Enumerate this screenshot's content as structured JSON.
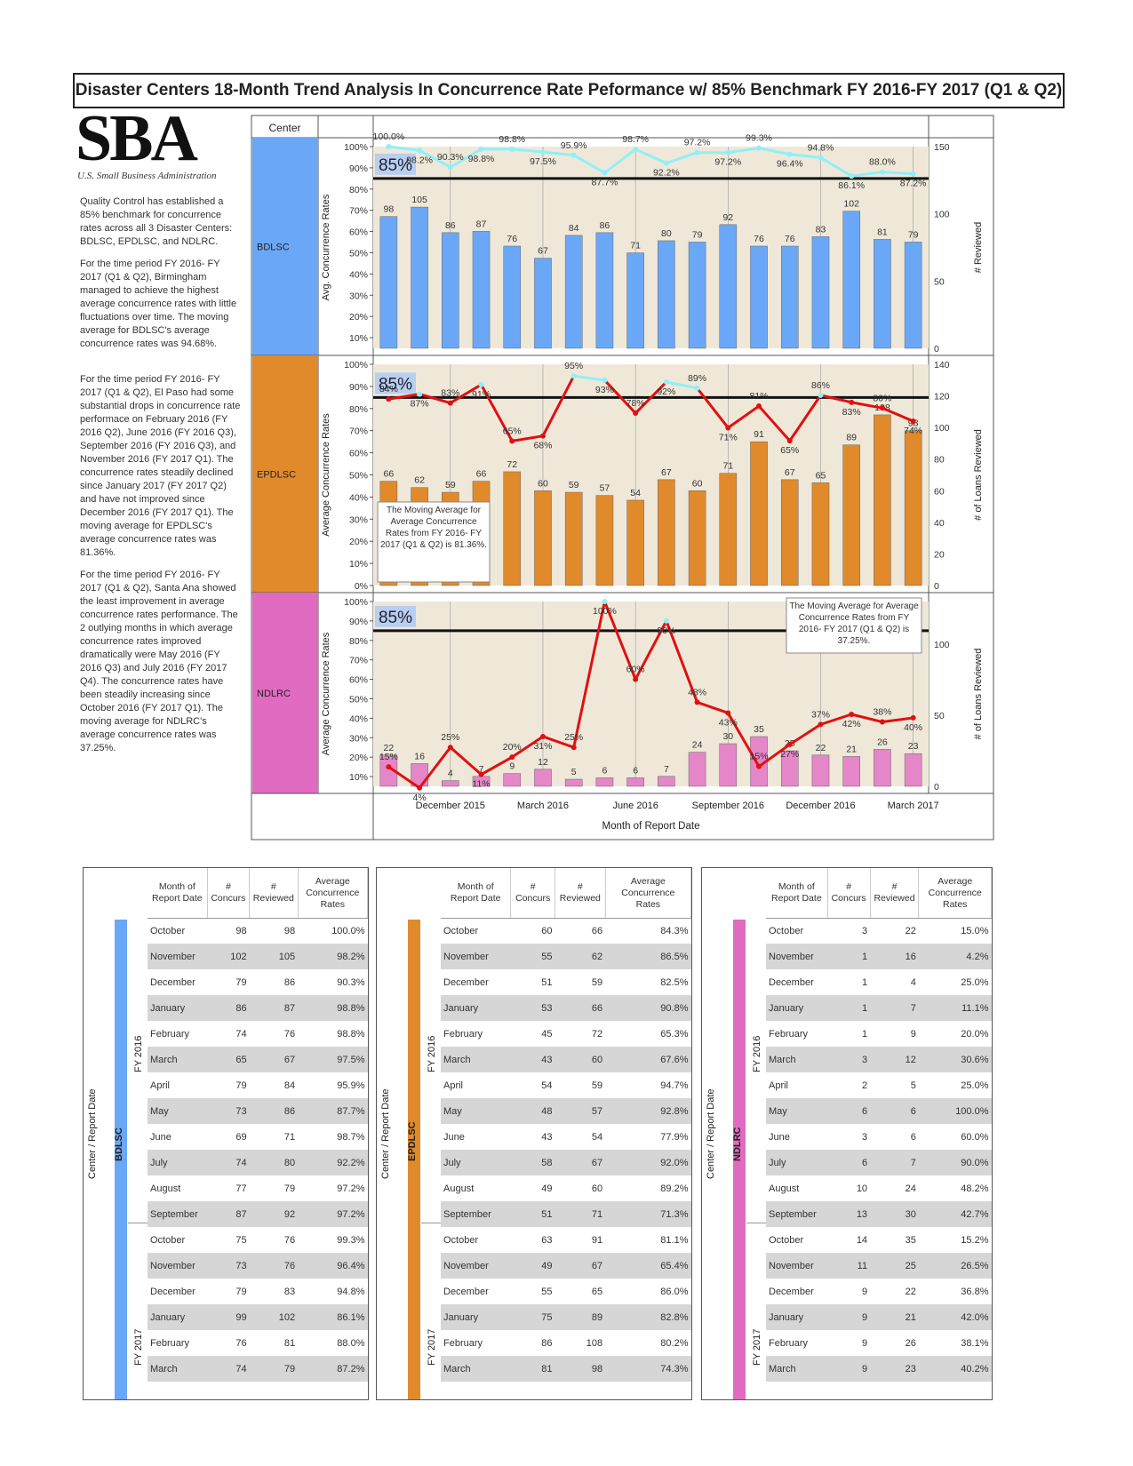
{
  "title": "Disaster Centers 18-Month Trend Analysis In Concurrence Rate Peformance w/ 85% Benchmark FY 2016-FY 2017 (Q1 & Q2)",
  "logo": {
    "text": "SBA",
    "subtitle": "U.S. Small Business Administration"
  },
  "narrative": {
    "p1": "Quality Control has established a 85% benchmark for concurrence rates across all 3 Disaster Centers: BDLSC, EPDLSC, and NDLRC.",
    "p2": "For the time period FY 2016- FY 2017 (Q1 & Q2), Birmingham managed to achieve the highest average concurrence rates with little fluctuations over time. The moving average for BDLSC's average concurrence rates was 94.68%.",
    "p3": "For the time period FY 2016- FY 2017 (Q1 & Q2), El Paso had some substantial drops in concurrence rate performace on February 2016 (FY 2016 Q2), June 2016 (FY 2016 Q3), September 2016 (FY 2016 Q3), and November 2016 (FY 2017 Q1). The concurrence rates steadily declined since January 2017 (FY 2017 Q2) and have not improved since December 2016 (FY 2017 Q1). The moving average for EPDLSC's average concurrence rates was 81.36%.",
    "p4": "For the time period FY 2016- FY 2017 (Q1 & Q2), Santa Ana showed the least improvement in average concurrence rates performance. The 2 outlying months in which average concurrence rates improved dramatically were May 2016 (FY 2016 Q3) and July 2016 (FY 2017 Q4). The concurrence rates have been steadily increasing since October 2016 (FY 2017 Q1). The moving average for NDLRC's average concurrence rates was 37.25%."
  },
  "colors": {
    "bdlsc": "#6aa8f7",
    "epdlsc": "#e08a2c",
    "ndlrc": "#e06bc0",
    "bar_bdlsc": "#6aa8f7",
    "bar_epdlsc": "#e08a2c",
    "bar_ndlrc": "#e586c8",
    "line_light": "#8ff0f7",
    "line_red": "#e01010",
    "bg": "#efe8d9"
  },
  "chart_data": {
    "type": "bar",
    "header": {
      "center": "Center"
    },
    "x_label": "Month of Report Date",
    "x_ticks": [
      "December 2015",
      "March 2016",
      "June 2016",
      "September 2016",
      "December 2016",
      "March 2017"
    ],
    "benchmark": 85,
    "benchmark_label": "85%",
    "panels": [
      {
        "center": "BDLSC",
        "left_label": "Avg. Concurrence Rates",
        "right_label": "# Reviewed",
        "y_ticks": [
          "10%",
          "20%",
          "30%",
          "40%",
          "50%",
          "60%",
          "70%",
          "80%",
          "90%",
          "100%"
        ],
        "right_ticks": [
          "0",
          "50",
          "100",
          "150"
        ],
        "right_max": 150,
        "reviewed": [
          98,
          105,
          86,
          87,
          76,
          67,
          84,
          86,
          71,
          80,
          79,
          92,
          76,
          76,
          83,
          102,
          81,
          79
        ],
        "rates": [
          100.0,
          98.2,
          90.3,
          98.8,
          98.8,
          97.5,
          95.9,
          87.7,
          98.7,
          92.2,
          97.2,
          97.2,
          99.3,
          96.4,
          94.8,
          86.1,
          88.0,
          87.2
        ],
        "rate_labels": [
          "100.0%",
          "98.2%",
          "90.3%",
          "98.8%",
          "98.8%",
          "97.5%",
          "95.9%",
          "87.7%",
          "98.7%",
          "92.2%",
          "97.2%",
          "97.2%",
          "99.3%",
          "96.4%",
          "94.8%",
          "86.1%",
          "88.0%",
          "87.2%"
        ],
        "note": ""
      },
      {
        "center": "EPDLSC",
        "left_label": "Average Concurrence Rates",
        "right_label": "# of Loans Reviewed",
        "y_ticks": [
          "0%",
          "10%",
          "20%",
          "30%",
          "40%",
          "50%",
          "60%",
          "70%",
          "80%",
          "90%",
          "100%"
        ],
        "right_ticks": [
          "0",
          "20",
          "40",
          "60",
          "80",
          "100",
          "120",
          "140"
        ],
        "right_max": 140,
        "reviewed": [
          66,
          62,
          59,
          66,
          72,
          60,
          59,
          57,
          54,
          67,
          60,
          71,
          91,
          67,
          65,
          89,
          108,
          98
        ],
        "rates": [
          84.3,
          86.5,
          82.5,
          90.8,
          65.3,
          67.6,
          94.7,
          92.8,
          77.9,
          92.0,
          89.2,
          71.3,
          81.1,
          65.4,
          86.0,
          82.8,
          80.2,
          74.3
        ],
        "rate_labels": [
          "84%",
          "87%",
          "83%",
          "91%",
          "65%",
          "68%",
          "95%",
          "93%",
          "78%",
          "92%",
          "89%",
          "71%",
          "81%",
          "65%",
          "86%",
          "83%",
          "80%",
          "74%"
        ],
        "note": "The Moving Average for Average Concurrence Rates from FY 2016- FY 2017 (Q1 & Q2) is 81.36%."
      },
      {
        "center": "NDLRC",
        "left_label": "Average Concurrence Rates",
        "right_label": "# of Loans Reviewed",
        "y_ticks": [
          "10%",
          "20%",
          "30%",
          "40%",
          "50%",
          "60%",
          "70%",
          "80%",
          "90%",
          "100%"
        ],
        "right_ticks": [
          "0",
          "50",
          "100"
        ],
        "right_max": 130,
        "reviewed": [
          22,
          16,
          4,
          7,
          9,
          12,
          5,
          6,
          6,
          7,
          24,
          30,
          35,
          25,
          22,
          21,
          26,
          23
        ],
        "rates": [
          15.0,
          4.2,
          25.0,
          11.1,
          20.0,
          30.6,
          25.0,
          100.0,
          60.0,
          90.0,
          48.2,
          42.7,
          15.2,
          26.5,
          36.8,
          42.0,
          38.1,
          40.2
        ],
        "rate_labels": [
          "15%",
          "4%",
          "25%",
          "11%",
          "20%",
          "31%",
          "25%",
          "100%",
          "60%",
          "90%",
          "48%",
          "43%",
          "15%",
          "27%",
          "37%",
          "42%",
          "38%",
          "40%"
        ],
        "note": "The Moving Average for Average Concurrence Rates from FY 2016- FY 2017 (Q1 & Q2) is 37.25%."
      }
    ]
  },
  "tables": {
    "headers": {
      "month": "Month of Report Date",
      "concurs": "# Concurs",
      "reviewed": "# Reviewed",
      "avg": "Average Concurrence Rates"
    },
    "side_label": "Center / Report Date",
    "fy2016": "FY 2016",
    "fy2017": "FY 2017",
    "centers": [
      {
        "name": "BDLSC",
        "rows": [
          [
            "October",
            98,
            98,
            "100.0%"
          ],
          [
            "November",
            102,
            105,
            "98.2%"
          ],
          [
            "December",
            79,
            86,
            "90.3%"
          ],
          [
            "January",
            86,
            87,
            "98.8%"
          ],
          [
            "February",
            74,
            76,
            "98.8%"
          ],
          [
            "March",
            65,
            67,
            "97.5%"
          ],
          [
            "April",
            79,
            84,
            "95.9%"
          ],
          [
            "May",
            73,
            86,
            "87.7%"
          ],
          [
            "June",
            69,
            71,
            "98.7%"
          ],
          [
            "July",
            74,
            80,
            "92.2%"
          ],
          [
            "August",
            77,
            79,
            "97.2%"
          ],
          [
            "September",
            87,
            92,
            "97.2%"
          ],
          [
            "October",
            75,
            76,
            "99.3%"
          ],
          [
            "November",
            73,
            76,
            "96.4%"
          ],
          [
            "December",
            79,
            83,
            "94.8%"
          ],
          [
            "January",
            99,
            102,
            "86.1%"
          ],
          [
            "February",
            76,
            81,
            "88.0%"
          ],
          [
            "March",
            74,
            79,
            "87.2%"
          ]
        ]
      },
      {
        "name": "EPDLSC",
        "rows": [
          [
            "October",
            60,
            66,
            "84.3%"
          ],
          [
            "November",
            55,
            62,
            "86.5%"
          ],
          [
            "December",
            51,
            59,
            "82.5%"
          ],
          [
            "January",
            53,
            66,
            "90.8%"
          ],
          [
            "February",
            45,
            72,
            "65.3%"
          ],
          [
            "March",
            43,
            60,
            "67.6%"
          ],
          [
            "April",
            54,
            59,
            "94.7%"
          ],
          [
            "May",
            48,
            57,
            "92.8%"
          ],
          [
            "June",
            43,
            54,
            "77.9%"
          ],
          [
            "July",
            58,
            67,
            "92.0%"
          ],
          [
            "August",
            49,
            60,
            "89.2%"
          ],
          [
            "September",
            51,
            71,
            "71.3%"
          ],
          [
            "October",
            63,
            91,
            "81.1%"
          ],
          [
            "November",
            49,
            67,
            "65.4%"
          ],
          [
            "December",
            55,
            65,
            "86.0%"
          ],
          [
            "January",
            75,
            89,
            "82.8%"
          ],
          [
            "February",
            86,
            108,
            "80.2%"
          ],
          [
            "March",
            81,
            98,
            "74.3%"
          ]
        ]
      },
      {
        "name": "NDLRC",
        "rows": [
          [
            "October",
            3,
            22,
            "15.0%"
          ],
          [
            "November",
            1,
            16,
            "4.2%"
          ],
          [
            "December",
            1,
            4,
            "25.0%"
          ],
          [
            "January",
            1,
            7,
            "11.1%"
          ],
          [
            "February",
            1,
            9,
            "20.0%"
          ],
          [
            "March",
            3,
            12,
            "30.6%"
          ],
          [
            "April",
            2,
            5,
            "25.0%"
          ],
          [
            "May",
            6,
            6,
            "100.0%"
          ],
          [
            "June",
            3,
            6,
            "60.0%"
          ],
          [
            "July",
            6,
            7,
            "90.0%"
          ],
          [
            "August",
            10,
            24,
            "48.2%"
          ],
          [
            "September",
            13,
            30,
            "42.7%"
          ],
          [
            "October",
            14,
            35,
            "15.2%"
          ],
          [
            "November",
            11,
            25,
            "26.5%"
          ],
          [
            "December",
            9,
            22,
            "36.8%"
          ],
          [
            "January",
            9,
            21,
            "42.0%"
          ],
          [
            "February",
            9,
            26,
            "38.1%"
          ],
          [
            "March",
            9,
            23,
            "40.2%"
          ]
        ]
      }
    ]
  }
}
